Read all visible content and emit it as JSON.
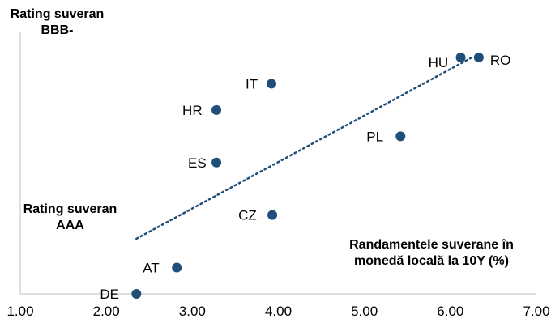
{
  "chart_data": {
    "type": "scatter",
    "xlim": [
      1.0,
      7.0
    ],
    "x_ticks": [
      "1.00",
      "2.00",
      "3.00",
      "4.00",
      "5.00",
      "6.00",
      "7.00"
    ],
    "points": [
      {
        "label": "DE",
        "x": 2.35,
        "y": 0.0
      },
      {
        "label": "AT",
        "x": 2.82,
        "y": 1.0
      },
      {
        "label": "CZ",
        "x": 3.93,
        "y": 3.0
      },
      {
        "label": "ES",
        "x": 3.28,
        "y": 5.0
      },
      {
        "label": "HR",
        "x": 3.28,
        "y": 7.0
      },
      {
        "label": "IT",
        "x": 3.92,
        "y": 8.0
      },
      {
        "label": "PL",
        "x": 5.42,
        "y": 6.0
      },
      {
        "label": "HU",
        "x": 6.12,
        "y": 9.0
      },
      {
        "label": "RO",
        "x": 6.33,
        "y": 9.0
      }
    ],
    "trendline": {
      "style": "dotted",
      "x": [
        2.35,
        6.25
      ],
      "y": [
        2.1,
        9.0
      ]
    },
    "marker_color": "#1f4e79",
    "grid": false
  },
  "annotations": {
    "top_left": "Rating suveran\nBBB-",
    "mid_left": "Rating suveran\nAAA",
    "x_axis_title": "Randamentele suverane în\nmonedă locală la 10Y (%)"
  }
}
